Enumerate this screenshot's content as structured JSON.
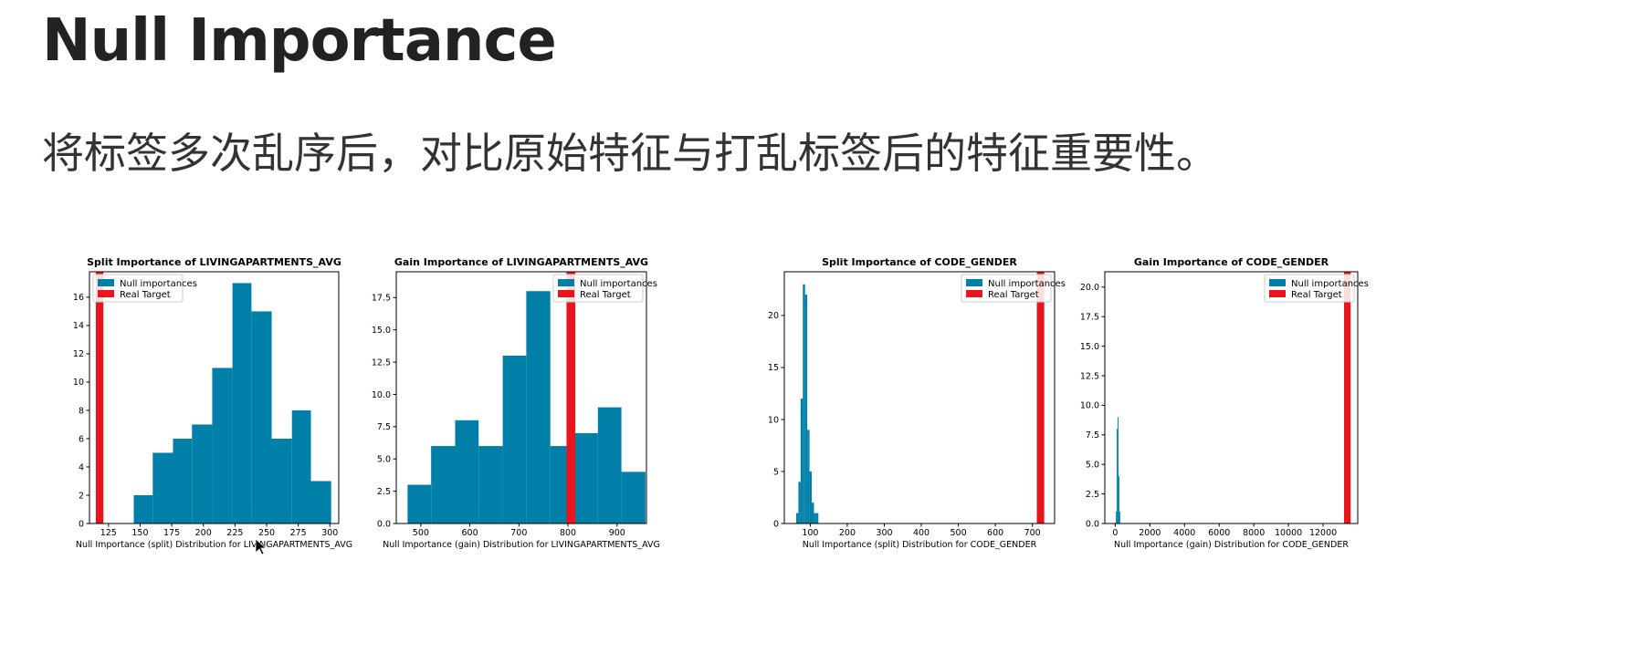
{
  "slide": {
    "title": "Null Importance",
    "subtitle": "将标签多次乱序后，对比原始特征与打乱标签后的特征重要性。"
  },
  "colors": {
    "null": "#0080a8",
    "real": "#e8141e",
    "axis": "#000000"
  },
  "chart_data": [
    {
      "type": "bar",
      "title": "Split Importance of LIVINGAPARTMENTS_AVG",
      "xlabel": "Null Importance (split) Distribution for LIVINGAPARTMENTS_AVG",
      "ylabel": "",
      "xlim": [
        110,
        307
      ],
      "ylim": [
        0,
        17.8
      ],
      "xticks": [
        125,
        150,
        175,
        200,
        225,
        250,
        275,
        300
      ],
      "yticks": [
        0,
        2,
        4,
        6,
        8,
        10,
        12,
        14,
        16
      ],
      "ytick_labels": [
        "0",
        "2",
        "4",
        "6",
        "8",
        "10",
        "12",
        "14",
        "16"
      ],
      "legend": {
        "position": "top-left",
        "entries": [
          "Null importances",
          "Real Target"
        ]
      },
      "series": [
        {
          "name": "Null importances",
          "kind": "histogram",
          "bins": [
            [
              145,
              160,
              2
            ],
            [
              160,
              176,
              5
            ],
            [
              176,
              191,
              6
            ],
            [
              191,
              207,
              7
            ],
            [
              207,
              223,
              11
            ],
            [
              223,
              238,
              17
            ],
            [
              238,
              254,
              15
            ],
            [
              254,
              270,
              6
            ],
            [
              270,
              285,
              8
            ],
            [
              285,
              301,
              3
            ]
          ]
        },
        {
          "name": "Real Target",
          "kind": "vline",
          "x": 118,
          "width": 6,
          "top": 17.8
        }
      ]
    },
    {
      "type": "bar",
      "title": "Gain Importance of LIVINGAPARTMENTS_AVG",
      "xlabel": "Null Importance (gain) Distribution for LIVINGAPARTMENTS_AVG",
      "ylabel": "",
      "xlim": [
        450,
        960
      ],
      "ylim": [
        0,
        19.5
      ],
      "xticks": [
        500,
        600,
        700,
        800,
        900
      ],
      "yticks": [
        0,
        2.5,
        5,
        7.5,
        10,
        12.5,
        15,
        17.5
      ],
      "ytick_labels": [
        "0.0",
        "2.5",
        "5.0",
        "7.5",
        "10.0",
        "12.5",
        "15.0",
        "17.5"
      ],
      "legend": {
        "position": "top-right",
        "entries": [
          "Null importances",
          "Real Target"
        ]
      },
      "series": [
        {
          "name": "Null importances",
          "kind": "histogram",
          "bins": [
            [
              473,
              521,
              3
            ],
            [
              521,
              570,
              6
            ],
            [
              570,
              618,
              8
            ],
            [
              618,
              667,
              6
            ],
            [
              667,
              715,
              13
            ],
            [
              715,
              764,
              18
            ],
            [
              764,
              812,
              6
            ],
            [
              812,
              861,
              7
            ],
            [
              861,
              909,
              9
            ],
            [
              909,
              958,
              4
            ]
          ]
        },
        {
          "name": "Real Target",
          "kind": "vline",
          "x": 806,
          "width": 18,
          "top": 19.5
        }
      ]
    },
    {
      "type": "bar",
      "title": "Split Importance of CODE_GENDER",
      "xlabel": "Null Importance (split) Distribution for CODE_GENDER",
      "ylabel": "",
      "xlim": [
        30,
        760
      ],
      "ylim": [
        0,
        24.2
      ],
      "xticks": [
        100,
        200,
        300,
        400,
        500,
        600,
        700
      ],
      "yticks": [
        0,
        5,
        10,
        15,
        20
      ],
      "ytick_labels": [
        "0",
        "5",
        "10",
        "15",
        "20"
      ],
      "legend": {
        "position": "top-right",
        "entries": [
          "Null importances",
          "Real Target"
        ]
      },
      "series": [
        {
          "name": "Null importances",
          "kind": "histogram",
          "bins": [
            [
              62,
              68,
              1
            ],
            [
              68,
              74,
              4
            ],
            [
              74,
              80,
              12
            ],
            [
              80,
              86,
              23
            ],
            [
              86,
              92,
              22
            ],
            [
              92,
              98,
              9
            ],
            [
              98,
              104,
              5
            ],
            [
              104,
              110,
              2
            ],
            [
              110,
              116,
              1
            ],
            [
              116,
              122,
              1
            ]
          ]
        },
        {
          "name": "Real Target",
          "kind": "vline",
          "x": 722,
          "width": 20,
          "top": 24.2
        }
      ]
    },
    {
      "type": "bar",
      "title": "Gain Importance of CODE_GENDER",
      "xlabel": "Null Importance (gain) Distribution for CODE_GENDER",
      "ylabel": "",
      "xlim": [
        -600,
        14000
      ],
      "ylim": [
        0,
        21.3
      ],
      "xticks": [
        0,
        2000,
        4000,
        6000,
        8000,
        10000,
        12000
      ],
      "yticks": [
        0,
        2.5,
        5,
        7.5,
        10,
        12.5,
        15,
        17.5,
        20
      ],
      "ytick_labels": [
        "0.0",
        "2.5",
        "5.0",
        "7.5",
        "10.0",
        "12.5",
        "15.0",
        "17.5",
        "20.0"
      ],
      "legend": {
        "position": "top-right",
        "entries": [
          "Null importances",
          "Real Target"
        ]
      },
      "series": [
        {
          "name": "Null importances",
          "kind": "histogram",
          "bins": [
            [
              40,
              90,
              1
            ],
            [
              90,
              140,
              8
            ],
            [
              140,
              190,
              9
            ],
            [
              190,
              240,
              4
            ],
            [
              240,
              290,
              1
            ]
          ]
        },
        {
          "name": "Real Target",
          "kind": "vline",
          "x": 13400,
          "width": 380,
          "top": 21.3
        }
      ]
    }
  ]
}
